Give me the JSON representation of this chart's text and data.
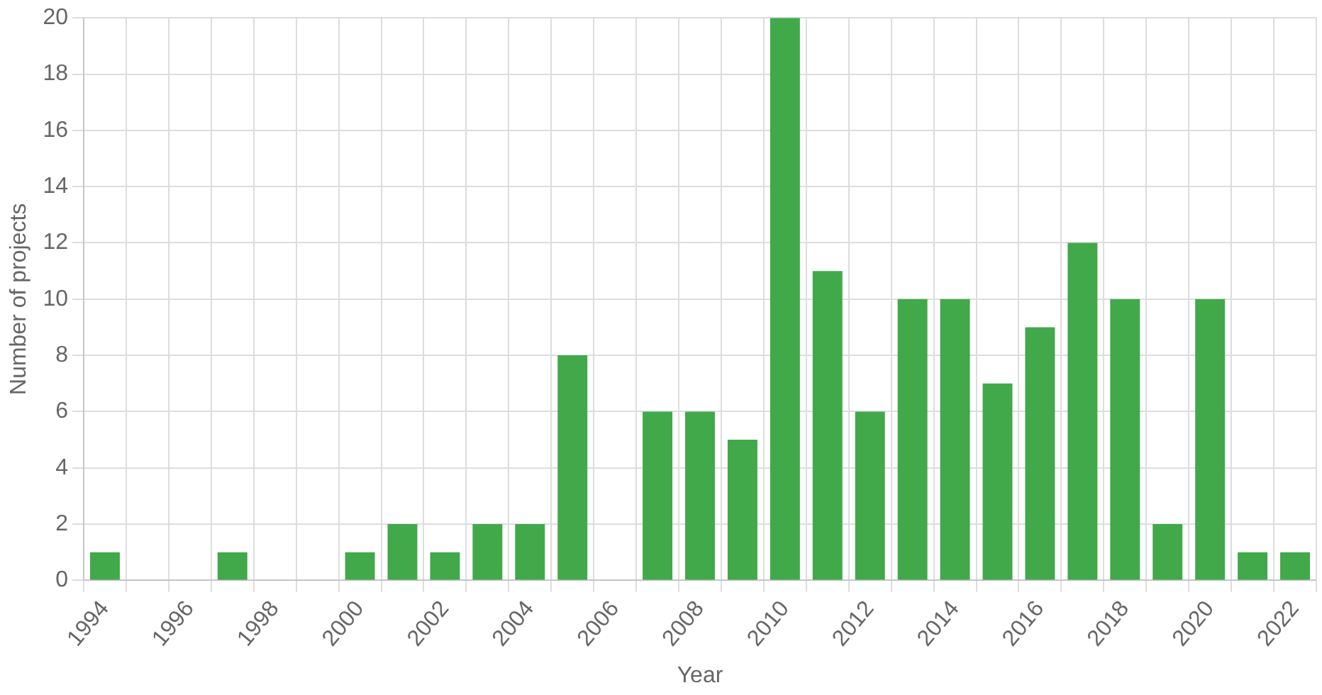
{
  "chart_data": {
    "type": "bar",
    "xlabel": "Year",
    "ylabel": "Number of projects",
    "categories": [
      "1994",
      null,
      "1996",
      null,
      "1998",
      null,
      "2000",
      null,
      "2002",
      null,
      "2004",
      null,
      "2006",
      null,
      "2008",
      null,
      "2010",
      null,
      "2012",
      null,
      "2014",
      null,
      "2016",
      null,
      "2018",
      null,
      "2020",
      null,
      "2022"
    ],
    "values": [
      1,
      0,
      0,
      1,
      0,
      0,
      1,
      2,
      1,
      2,
      2,
      8,
      0,
      6,
      6,
      5,
      20,
      11,
      6,
      10,
      10,
      7,
      9,
      12,
      10,
      2,
      10,
      1,
      1
    ],
    "color": "#41a94a",
    "ylim": [
      0,
      20
    ],
    "yticks": [
      0,
      2,
      4,
      6,
      8,
      10,
      12,
      14,
      16,
      18,
      20
    ],
    "grid": true,
    "legend": false
  }
}
